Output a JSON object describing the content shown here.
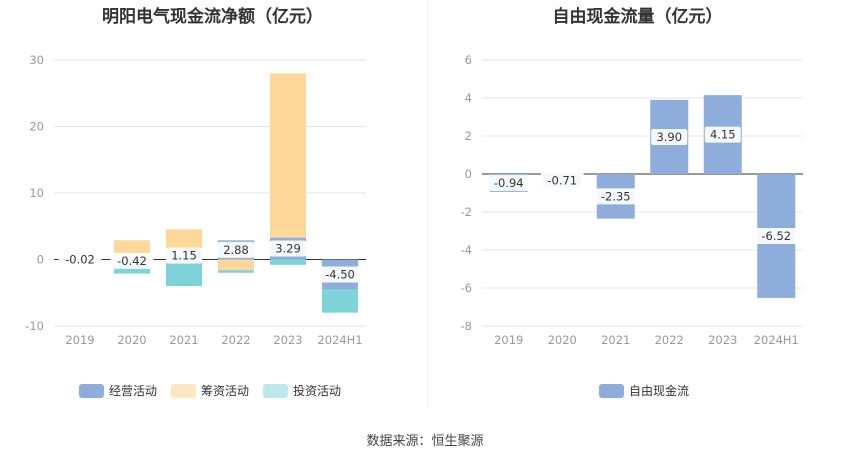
{
  "source": "数据来源：恒生聚源",
  "colors": {
    "operating": "#8eaddb",
    "financing": "#fdd89a",
    "investing": "#7ed3d9",
    "legend_investing": "#bfe8ec",
    "legend_financing": "#fee6c2",
    "fcf": "#8eaddb",
    "grid": "#e6e6e6",
    "axis_text": "#999999"
  },
  "chart_data": [
    {
      "type": "bar",
      "stacked": true,
      "title": "明阳电气现金流净额（亿元）",
      "categories": [
        "2019",
        "2020",
        "2021",
        "2022",
        "2023",
        "2024H1"
      ],
      "ylim": [
        -10,
        30
      ],
      "yticks": [
        -10,
        0,
        10,
        20,
        30
      ],
      "grid": true,
      "legend_position": "bottom",
      "series": [
        {
          "name": "经营活动",
          "values": [
            -0.02,
            -0.42,
            1.15,
            2.88,
            3.29,
            -4.5
          ],
          "labels": [
            "-0.02",
            "-0.42",
            "1.15",
            "2.88",
            "3.29",
            "-4.50"
          ]
        },
        {
          "name": "筹资活动",
          "values": [
            0,
            2.9,
            3.4,
            -1.6,
            24.7,
            0
          ]
        },
        {
          "name": "投资活动",
          "values": [
            0,
            -1.7,
            -4.0,
            -0.4,
            -0.8,
            -3.5
          ]
        }
      ]
    },
    {
      "type": "bar",
      "title": "自由现金流量（亿元）",
      "categories": [
        "2019",
        "2020",
        "2021",
        "2022",
        "2023",
        "2024H1"
      ],
      "ylim": [
        -8,
        6
      ],
      "yticks": [
        -8,
        -6,
        -4,
        -2,
        0,
        2,
        4,
        6
      ],
      "grid": true,
      "legend_position": "bottom",
      "series": [
        {
          "name": "自由现金流",
          "values": [
            -0.94,
            -0.71,
            -2.35,
            3.9,
            4.15,
            -6.52
          ],
          "labels": [
            "-0.94",
            "-0.71",
            "-2.35",
            "3.90",
            "4.15",
            "-6.52"
          ]
        }
      ]
    }
  ]
}
